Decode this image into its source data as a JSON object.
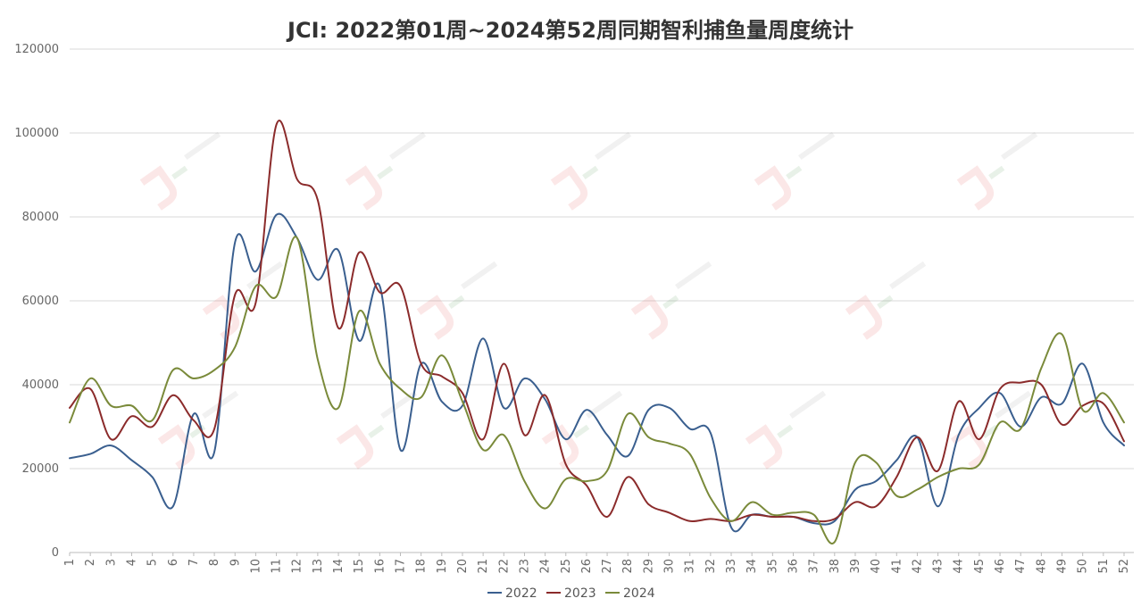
{
  "chart_data": {
    "type": "line",
    "title": "JCI: 2022第01周~2024第52周同期智利捕鱼量周度统计",
    "xlabel": "",
    "ylabel": "",
    "ylim": [
      0,
      120000
    ],
    "yticks": [
      "0",
      "20000",
      "40000",
      "60000",
      "80000",
      "100000",
      "120000"
    ],
    "grid": "horizontal",
    "legend_position": "bottom",
    "categories": [
      "1",
      "2",
      "3",
      "4",
      "5",
      "6",
      "7",
      "8",
      "9",
      "10",
      "11",
      "12",
      "13",
      "14",
      "15",
      "16",
      "17",
      "18",
      "19",
      "20",
      "21",
      "22",
      "23",
      "24",
      "25",
      "26",
      "27",
      "28",
      "29",
      "30",
      "31",
      "32",
      "33",
      "34",
      "35",
      "36",
      "37",
      "38",
      "39",
      "40",
      "41",
      "42",
      "43",
      "44",
      "45",
      "46",
      "47",
      "48",
      "49",
      "50",
      "51",
      "52"
    ],
    "series": [
      {
        "name": "2022",
        "color": "#3a5f8f",
        "values": [
          22500,
          23500,
          25500,
          22000,
          18000,
          11000,
          33000,
          24000,
          74000,
          67000,
          80500,
          75000,
          65000,
          72000,
          50500,
          63500,
          24500,
          45000,
          36000,
          35000,
          51000,
          34500,
          41500,
          36500,
          27000,
          34000,
          28000,
          23000,
          34000,
          34500,
          29500,
          28500,
          6000,
          9000,
          8500,
          8500,
          7000,
          7500,
          15000,
          17000,
          22000,
          27500,
          11000,
          28000,
          34500,
          38000,
          30000,
          37000,
          35500,
          45000,
          31000,
          25500
        ]
      },
      {
        "name": "2023",
        "color": "#8b2b2b",
        "values": [
          34500,
          39000,
          27000,
          32500,
          30000,
          37500,
          31500,
          29500,
          61500,
          59500,
          102000,
          89000,
          84000,
          53500,
          71500,
          62000,
          63500,
          45000,
          42000,
          38000,
          27000,
          45000,
          28000,
          37500,
          21000,
          16000,
          8500,
          18000,
          11500,
          9500,
          7500,
          8000,
          7500,
          9000,
          8500,
          8500,
          7500,
          8000,
          12000,
          11000,
          18000,
          27500,
          19500,
          36000,
          27000,
          39000,
          40500,
          40000,
          30500,
          35000,
          35500,
          26500
        ]
      },
      {
        "name": "2024",
        "color": "#7a8a3a",
        "values": [
          31000,
          41500,
          35000,
          35000,
          31500,
          43500,
          41500,
          43500,
          49000,
          63500,
          61000,
          75000,
          46000,
          34500,
          57500,
          45000,
          39000,
          37000,
          47000,
          36000,
          24500,
          28000,
          17000,
          10500,
          17500,
          17000,
          19500,
          33000,
          27500,
          26000,
          23500,
          13000,
          7500,
          12000,
          9000,
          9500,
          9000,
          2500,
          21500,
          21500,
          13500,
          15000,
          18000,
          20000,
          21000,
          31000,
          29500,
          44000,
          52000,
          34000,
          38000,
          31000
        ]
      }
    ]
  }
}
